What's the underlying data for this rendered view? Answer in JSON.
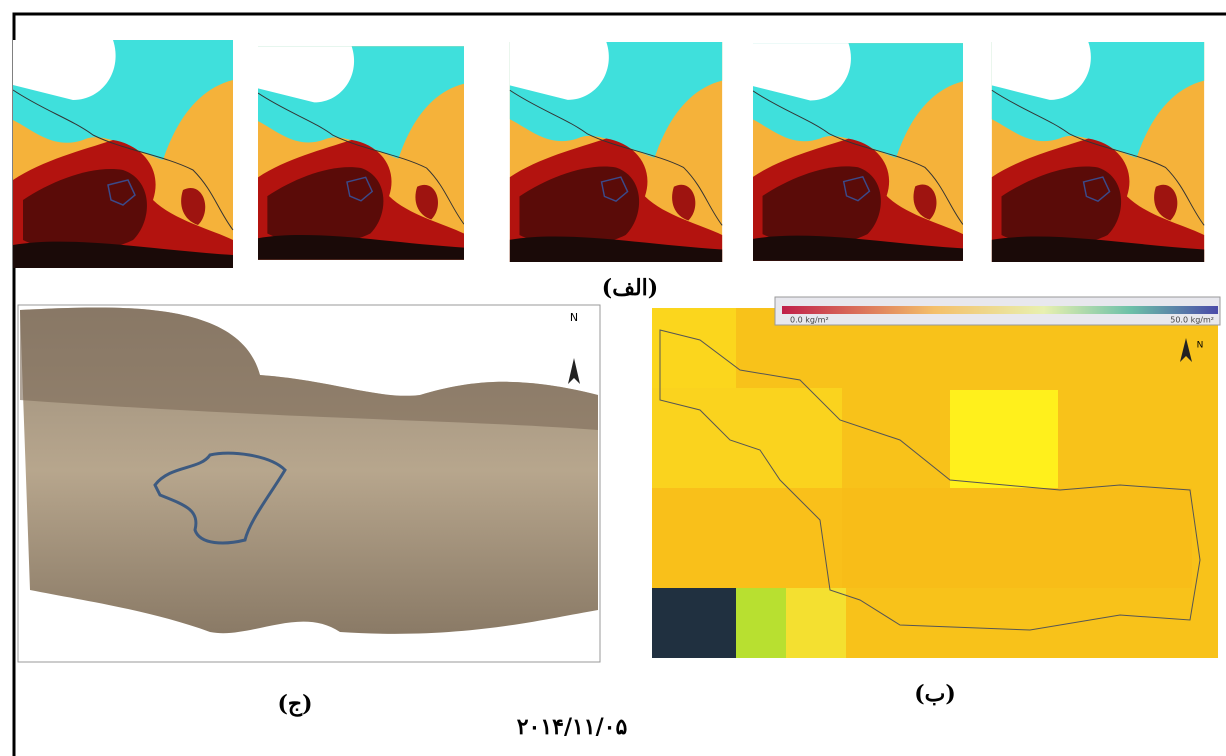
{
  "panels": {
    "a": {
      "label": "(الف)"
    },
    "b": {
      "label": "(ب)",
      "colorbar": {
        "min_label": "0.0 kg/m²",
        "max_label": "50.0 kg/m²"
      },
      "north": "N"
    },
    "c": {
      "label": "(ج)",
      "north": "N"
    }
  },
  "date": "۲۰۱۴/۱۱/۰۵"
}
